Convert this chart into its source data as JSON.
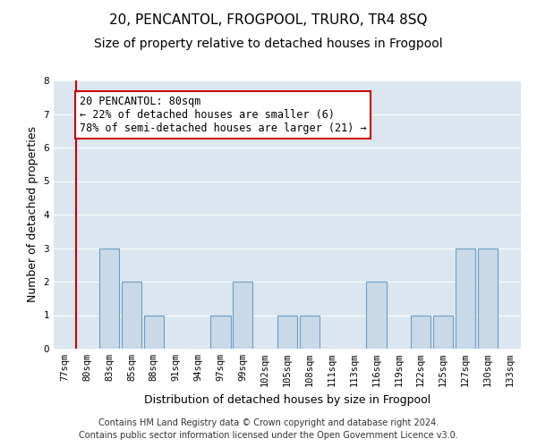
{
  "title1": "20, PENCANTOL, FROGPOOL, TRURO, TR4 8SQ",
  "title2": "Size of property relative to detached houses in Frogpool",
  "xlabel": "Distribution of detached houses by size in Frogpool",
  "ylabel": "Number of detached properties",
  "footer1": "Contains HM Land Registry data © Crown copyright and database right 2024.",
  "footer2": "Contains public sector information licensed under the Open Government Licence v3.0.",
  "annotation_line1": "20 PENCANTOL: 80sqm",
  "annotation_line2": "← 22% of detached houses are smaller (6)",
  "annotation_line3": "78% of semi-detached houses are larger (21) →",
  "bar_color": "#c9d9e8",
  "bar_edge_color": "#6a9ec5",
  "subject_line_color": "#cc0000",
  "background_color": "#dce6f0",
  "annotation_box_color": "#ffffff",
  "annotation_box_edge": "#cc0000",
  "categories": [
    "77sqm",
    "80sqm",
    "83sqm",
    "85sqm",
    "88sqm",
    "91sqm",
    "94sqm",
    "97sqm",
    "99sqm",
    "102sqm",
    "105sqm",
    "108sqm",
    "111sqm",
    "113sqm",
    "116sqm",
    "119sqm",
    "122sqm",
    "125sqm",
    "127sqm",
    "130sqm",
    "133sqm"
  ],
  "values": [
    0,
    0,
    3,
    2,
    1,
    0,
    0,
    1,
    2,
    0,
    1,
    1,
    0,
    0,
    2,
    0,
    1,
    1,
    3,
    3,
    0
  ],
  "subject_bar_index": 1,
  "ylim": [
    0,
    8
  ],
  "yticks": [
    0,
    1,
    2,
    3,
    4,
    5,
    6,
    7,
    8
  ],
  "grid_color": "#ffffff",
  "title1_fontsize": 11,
  "title2_fontsize": 10,
  "ylabel_fontsize": 9,
  "xlabel_fontsize": 9,
  "tick_fontsize": 7.5,
  "footer_fontsize": 7,
  "annotation_fontsize": 8.5
}
